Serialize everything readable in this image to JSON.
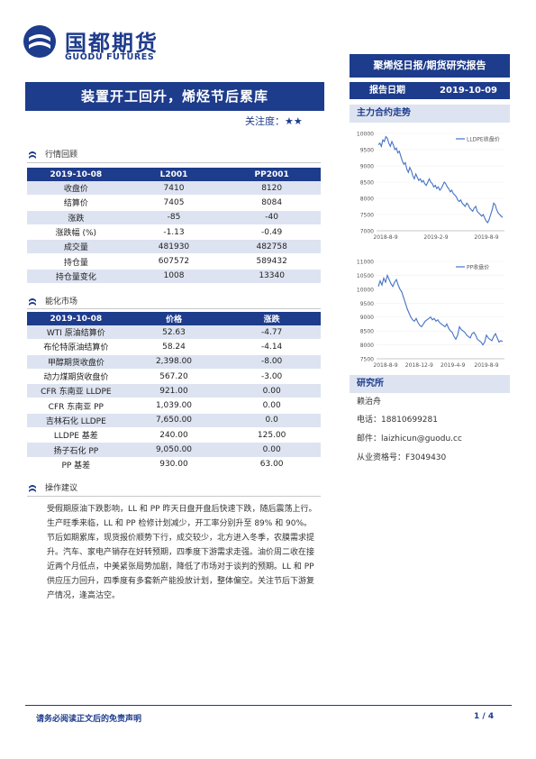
{
  "header": {
    "company_cn": "国都期货",
    "company_en": "GUODU FUTURES",
    "report_type": "聚烯烃日报/期货研究报告",
    "date_label": "报告日期",
    "date_value": "2019-10-09"
  },
  "title": "装置开工回升，烯烃节后累库",
  "attention": "关注度：★★",
  "section1": {
    "heading": "行情回顾",
    "headers": [
      "2019-10-08",
      "L2001",
      "PP2001"
    ],
    "rows": [
      [
        "收盘价",
        "7410",
        "8120"
      ],
      [
        "结算价",
        "7405",
        "8084"
      ],
      [
        "涨跌",
        "-85",
        "-40"
      ],
      [
        "涨跌幅 (%)",
        "-1.13",
        "-0.49"
      ],
      [
        "成交量",
        "481930",
        "482758"
      ],
      [
        "持仓量",
        "607572",
        "589432"
      ],
      [
        "持仓量变化",
        "1008",
        "13340"
      ]
    ]
  },
  "section2": {
    "heading": "能化市场",
    "headers": [
      "2019-10-08",
      "价格",
      "涨跌"
    ],
    "rows": [
      [
        "WTI 原油结算价",
        "52.63",
        "-4.77"
      ],
      [
        "布伦特原油结算价",
        "58.24",
        "-4.14"
      ],
      [
        "甲醇期货收盘价",
        "2,398.00",
        "-8.00"
      ],
      [
        "动力煤期货收盘价",
        "567.20",
        "-3.00"
      ],
      [
        "CFR 东南亚 LLDPE",
        "921.00",
        "0.00"
      ],
      [
        "CFR 东南亚 PP",
        "1,039.00",
        "0.00"
      ],
      [
        "吉林石化 LLDPE",
        "7,650.00",
        "0.0"
      ],
      [
        "LLDPE 基差",
        "240.00",
        "125.00"
      ],
      [
        "扬子石化 PP",
        "9,050.00",
        "0.00"
      ],
      [
        "PP 基差",
        "930.00",
        "63.00"
      ]
    ]
  },
  "section3": {
    "heading": "操作建议",
    "text": "受假期原油下跌影响，LL 和 PP 昨天日盘开盘后快速下跌，随后震荡上行。生产旺季来临，LL 和 PP 检修计划减少，开工率分别升至 89% 和 90%。节后如期累库，现货报价顺势下行，成交较少，北方进入冬季，农膜需求提升。汽车、家电产销存在好转预期，四季度下游需求走强。油价周二收在接近两个月低点，中美紧张局势加剧，降低了市场对于谈判的预期。LL 和 PP 供应压力回升，四季度有多套新产能投放计划，整体偏空。关注节后下游复产情况，逢高沽空。"
  },
  "right": {
    "chart_heading": "主力合约走势",
    "research_heading": "研究所",
    "analyst": "赖治舟",
    "phone": "电话：18810699281",
    "email": "邮件：laizhicun@guodu.cc",
    "license": "从业资格号：F3049430"
  },
  "chart_data": [
    {
      "type": "line",
      "title": "",
      "legend": "LLDPE收盘价",
      "legend_position": "top-right",
      "ylim": [
        7000,
        10000
      ],
      "yticks": [
        "10000",
        "9500",
        "9000",
        "8500",
        "8000",
        "7500",
        "7000"
      ],
      "xticks": [
        "2018-8-9",
        "2019-2-9",
        "2019-8-9"
      ],
      "series": [
        {
          "name": "LLDPE收盘价",
          "color": "#4472c4",
          "values": [
            9650,
            9700,
            9600,
            9800,
            9750,
            9900,
            9850,
            9700,
            9600,
            9750,
            9650,
            9500,
            9550,
            9400,
            9450,
            9300,
            9150,
            9050,
            9100,
            8900,
            8800,
            8950,
            8850,
            8700,
            8600,
            8750,
            8650,
            8550,
            8600,
            8500,
            8550,
            8450,
            8400,
            8500,
            8600,
            8500,
            8450,
            8350,
            8400,
            8300,
            8350,
            8250,
            8300,
            8400,
            8500,
            8450,
            8350,
            8300,
            8200,
            8250,
            8150,
            8100,
            8050,
            7950,
            7900,
            7950,
            7850,
            7800,
            7750,
            7850,
            7800,
            7700,
            7650,
            7600,
            7700,
            7750,
            7600,
            7550,
            7500,
            7450,
            7500,
            7400,
            7300,
            7250,
            7350,
            7500,
            7650,
            7850,
            7800,
            7650,
            7550,
            7500,
            7450,
            7410
          ]
        }
      ]
    },
    {
      "type": "line",
      "title": "",
      "legend": "PP收盘价",
      "legend_position": "top-right",
      "ylim": [
        7500,
        11000
      ],
      "yticks": [
        "11000",
        "10500",
        "10000",
        "9500",
        "9000",
        "8500",
        "8000",
        "7500"
      ],
      "xticks": [
        "2018-8-9",
        "2018-12-9",
        "2019-4-9",
        "2019-8-9"
      ],
      "series": [
        {
          "name": "PP收盘价",
          "color": "#4472c4",
          "values": [
            10100,
            10300,
            10150,
            10400,
            10250,
            10500,
            10350,
            10200,
            10100,
            10250,
            10350,
            10150,
            10000,
            9900,
            9700,
            9500,
            9300,
            9150,
            9000,
            8900,
            8850,
            8950,
            8800,
            8700,
            8650,
            8750,
            8850,
            8900,
            8950,
            9000,
            8900,
            8950,
            8850,
            8900,
            8800,
            8750,
            8700,
            8650,
            8750,
            8600,
            8500,
            8450,
            8300,
            8200,
            8350,
            8650,
            8550,
            8500,
            8450,
            8350,
            8300,
            8250,
            8400,
            8450,
            8350,
            8200,
            8150,
            8100,
            8000,
            8100,
            8350,
            8250,
            8200,
            8150,
            8300,
            8400,
            8250,
            8100,
            8150,
            8120
          ]
        }
      ]
    }
  ],
  "footer": {
    "disclaimer": "请务必阅读正文后的免责声明",
    "page": "1 / 4"
  }
}
